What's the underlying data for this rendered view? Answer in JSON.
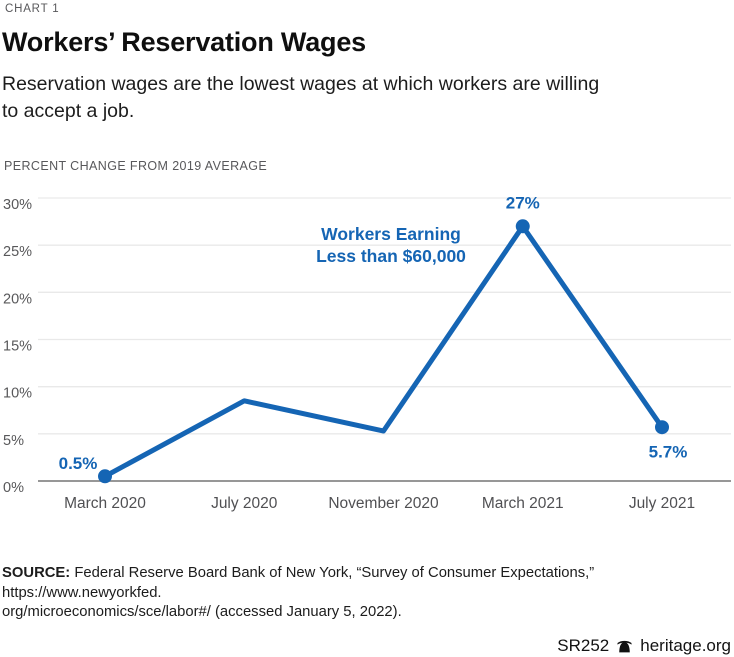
{
  "page": {
    "kicker": "CHART 1",
    "title": "Workers’ Reservation Wages",
    "subtitle_lines": [
      "Reservation wages are the lowest wages at which workers are willing",
      "to accept a job."
    ],
    "axis_unit": "PERCENT CHANGE FROM 2019 AVERAGE"
  },
  "chart_data": {
    "type": "line",
    "title": "Workers’ Reservation Wages",
    "unit_label": "PERCENT CHANGE FROM 2019 AVERAGE",
    "categories": [
      "March 2020",
      "July 2020",
      "November 2020",
      "March 2021",
      "July 2021"
    ],
    "series": [
      {
        "name": "Workers Earning Less than $60,000",
        "color": "#1565b4",
        "values": [
          0.5,
          8.5,
          5.3,
          27,
          5.7
        ]
      }
    ],
    "ylim": [
      0,
      30
    ],
    "yticks": [
      0,
      5,
      10,
      15,
      20,
      25,
      30
    ],
    "ytick_suffix": "%",
    "grid": true,
    "legend_position": "annotation-inside",
    "annotation": {
      "lines": [
        "Workers Earning",
        "Less than $60,000"
      ]
    },
    "point_labels": [
      {
        "index": 0,
        "text": "0.5%",
        "placement": "above-left",
        "dot": true
      },
      {
        "index": 3,
        "text": "27%",
        "placement": "above",
        "dot": true
      },
      {
        "index": 4,
        "text": "5.7%",
        "placement": "below",
        "dot": true
      }
    ],
    "colors": {
      "gridline": "#e9e9e9",
      "axis_line": "#888888",
      "tick_text": "#58585a",
      "xlabel_text": "#505053"
    }
  },
  "footer": {
    "source_label": "SOURCE:",
    "source_lines": [
      "Federal Reserve Board Bank of New York, “Survey of Consumer Expectations,” https://www.newyorkfed.",
      "org/microeconomics/sce/labor#/ (accessed January 5, 2022)."
    ],
    "report_id": "SR252",
    "site": "heritage.org"
  }
}
